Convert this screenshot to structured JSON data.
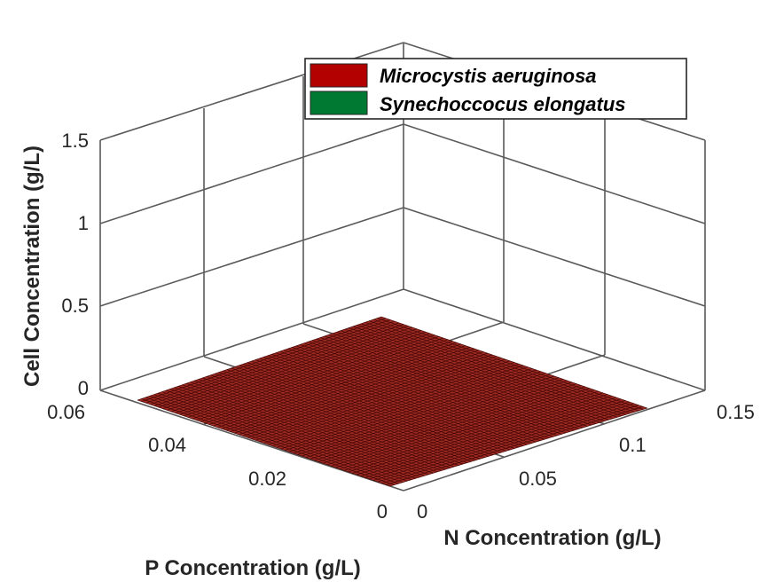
{
  "chart_data": {
    "type": "surface",
    "title": "",
    "xlabel": "P Concentration (g/L)",
    "ylabel": "N Concentration (g/L)",
    "zlabel": "Cell Concentration (g/L)",
    "xlim": [
      0,
      0.06
    ],
    "ylim": [
      0,
      0.15
    ],
    "zlim": [
      0,
      1.5
    ],
    "xticks": [
      "0",
      "0.02",
      "0.04",
      "0.06"
    ],
    "yticks": [
      "0",
      "0.05",
      "0.1",
      "0.15"
    ],
    "zticks": [
      "0",
      "0.5",
      "1",
      "1.5"
    ],
    "grid": true,
    "legend_position": "top-right",
    "series": [
      {
        "name": "Microcystis aeruginosa",
        "color": "#b30000",
        "surface_value_approx": 0.0
      },
      {
        "name": "Synechoccocus elongatus",
        "color": "#007a33",
        "surface_value_approx": 0.0
      }
    ]
  }
}
